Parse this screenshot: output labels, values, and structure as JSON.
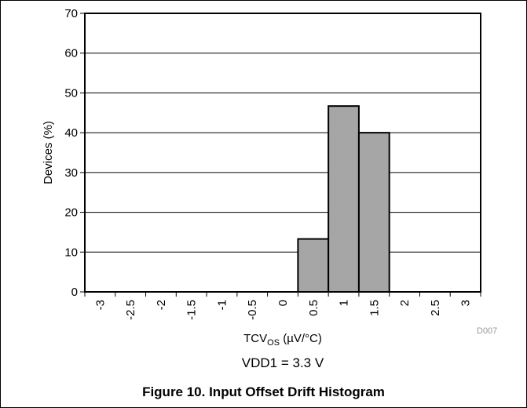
{
  "chart_data": {
    "type": "bar",
    "categories": [
      "-3",
      "-2.5",
      "-2",
      "-1.5",
      "-1",
      "-0.5",
      "0",
      "0.5",
      "1",
      "1.5",
      "2",
      "2.5",
      "3"
    ],
    "bins": [
      {
        "from": 0.25,
        "to": 0.75,
        "value": 13.3
      },
      {
        "from": 0.75,
        "to": 1.25,
        "value": 46.7
      },
      {
        "from": 1.25,
        "to": 1.75,
        "value": 40.0
      }
    ],
    "xlim": [
      -3.25,
      3.25
    ],
    "ylim": [
      0,
      70
    ],
    "yticks": [
      0,
      10,
      20,
      30,
      40,
      50,
      60,
      70
    ],
    "ylabel": "Devices (%)",
    "xlabel_main": "TCV",
    "xlabel_sub": "OS",
    "xlabel_unit": " (µV/°C)",
    "condition": "VDD1 = 3.3 V",
    "grid": true,
    "bar_color": "#a6a6a6"
  },
  "figure_tag": "D007",
  "caption": "Figure 10. Input Offset Drift Histogram"
}
